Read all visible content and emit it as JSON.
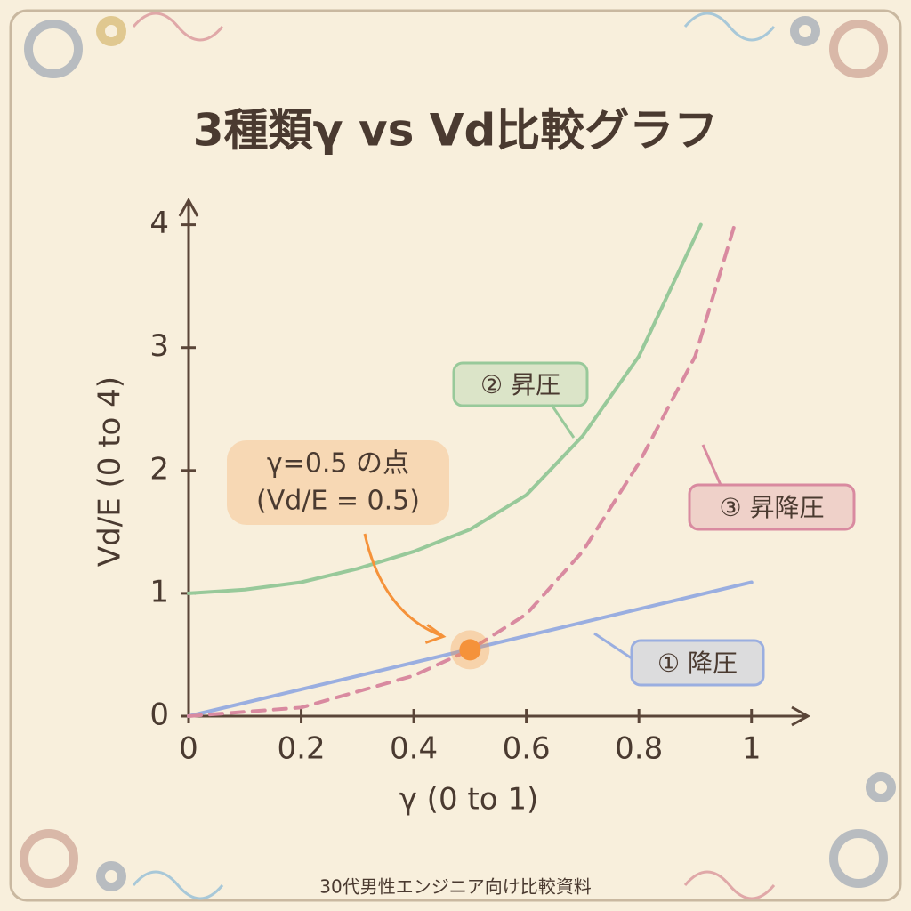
{
  "chart_data": {
    "type": "line",
    "title": "3種類γ vs Vd比較グラフ",
    "xlabel": "γ (0 to 1)",
    "ylabel": "Vd/E (0 to 4)",
    "footer": "30代男性エンジニア向け比較資料",
    "xlim": [
      0,
      1.1
    ],
    "ylim": [
      0,
      4.2
    ],
    "xticks": [
      0,
      0.2,
      0.4,
      0.6,
      0.8,
      1
    ],
    "yticks": [
      0,
      1,
      2,
      3,
      4
    ],
    "series": [
      {
        "name": "① 降圧",
        "color": "#9aaee0",
        "style": "solid",
        "x": [
          0,
          1
        ],
        "values": [
          0,
          1.09
        ]
      },
      {
        "name": "② 昇圧",
        "color": "#98c99a",
        "style": "solid",
        "x": [
          0,
          0.1,
          0.2,
          0.3,
          0.4,
          0.5,
          0.6,
          0.7,
          0.8,
          0.91
        ],
        "values": [
          1.0,
          1.03,
          1.09,
          1.2,
          1.34,
          1.52,
          1.8,
          2.28,
          2.93,
          4.0
        ]
      },
      {
        "name": "③ 昇降圧",
        "color": "#d98aa0",
        "style": "dashed",
        "x": [
          0,
          0.2,
          0.4,
          0.5,
          0.6,
          0.7,
          0.8,
          0.9,
          0.97
        ],
        "values": [
          0,
          0.07,
          0.33,
          0.54,
          0.83,
          1.34,
          2.06,
          2.93,
          4.0
        ]
      }
    ],
    "annotations": [
      {
        "lines": [
          "γ=0.5 の点",
          "(Vd/E = 0.5)"
        ],
        "x": 0.5,
        "y": 0.54,
        "color": "#f5923a"
      }
    ]
  }
}
